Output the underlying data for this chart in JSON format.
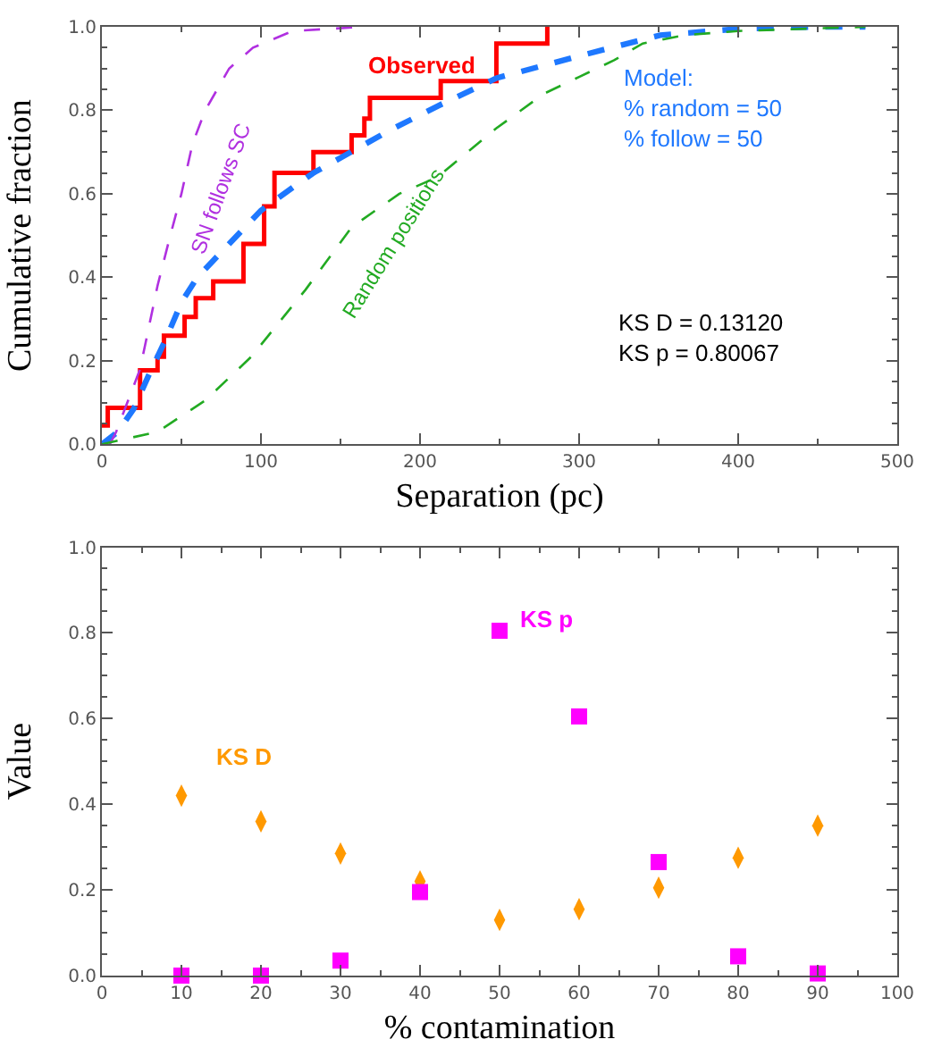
{
  "chart_data": [
    {
      "type": "line",
      "xlabel": "Separation (pc)",
      "ylabel": "Cumulative fraction",
      "xlim": [
        0,
        500
      ],
      "ylim": [
        0,
        1
      ],
      "xticks": [
        0,
        100,
        200,
        300,
        400,
        500
      ],
      "yticks": [
        {
          "value": 0,
          "label": "0.0"
        },
        {
          "value": 0.2,
          "label": "0.2"
        },
        {
          "value": 0.4,
          "label": "0.4"
        },
        {
          "value": 0.6,
          "label": "0.6"
        },
        {
          "value": 0.8,
          "label": "0.8"
        },
        {
          "value": 1,
          "label": "1.0"
        }
      ],
      "series": [
        {
          "name": "Observed",
          "type": "step",
          "color": "#ff0000",
          "line_style": "solid",
          "x": [
            0,
            3.7,
            24,
            35,
            39,
            52,
            59,
            70,
            89,
            102,
            108.5,
            133,
            157,
            165,
            168.5,
            213,
            248,
            280
          ],
          "values": [
            0.045,
            0.087,
            0.177,
            0.21,
            0.26,
            0.305,
            0.35,
            0.39,
            0.48,
            0.57,
            0.65,
            0.7,
            0.74,
            0.78,
            0.83,
            0.87,
            0.96,
            1.0
          ]
        },
        {
          "color": "#1e78ff",
          "line_style": "dashed",
          "x": [
            0,
            10,
            20,
            30,
            40,
            50,
            60,
            70,
            80,
            90,
            100,
            120,
            133,
            150,
            180,
            211,
            248,
            300,
            351,
            400,
            450,
            480
          ],
          "values": [
            0,
            0.03,
            0.085,
            0.17,
            0.25,
            0.34,
            0.4,
            0.44,
            0.48,
            0.52,
            0.56,
            0.615,
            0.65,
            0.686,
            0.75,
            0.81,
            0.877,
            0.93,
            0.98,
            0.995,
            1.0,
            1.0
          ]
        },
        {
          "name": "SN follows SC",
          "color": "#b030e0",
          "line_style": "dashed",
          "x": [
            5,
            9,
            24,
            35,
            43,
            50,
            57,
            65,
            80,
            95,
            120,
            165
          ],
          "values": [
            0,
            0.03,
            0.18,
            0.38,
            0.5,
            0.6,
            0.72,
            0.8,
            0.9,
            0.95,
            0.99,
            1.0
          ]
        },
        {
          "name": "Random positions",
          "color": "#22aa22",
          "line_style": "dashed",
          "x": [
            0,
            35,
            65,
            94,
            128,
            157,
            187,
            211,
            248,
            278,
            300,
            322,
            340,
            366,
            400,
            480
          ],
          "values": [
            0,
            0.03,
            0.105,
            0.21,
            0.37,
            0.52,
            0.6,
            0.64,
            0.757,
            0.84,
            0.88,
            0.92,
            0.96,
            0.98,
            0.99,
            1.0
          ]
        }
      ],
      "annotations": [
        "Model:\n% random = 50\n% follow = 50",
        "KS D = 0.13120\nKS p = 0.80067"
      ]
    },
    {
      "type": "scatter",
      "xlabel": "% contamination",
      "ylabel": "Value",
      "xlim": [
        0,
        100
      ],
      "ylim": [
        0,
        1
      ],
      "xticks": [
        0,
        10,
        20,
        30,
        40,
        50,
        60,
        70,
        80,
        90,
        100
      ],
      "yticks": [
        {
          "value": 0,
          "label": "0.0"
        },
        {
          "value": 0.2,
          "label": "0.2"
        },
        {
          "value": 0.4,
          "label": "0.4"
        },
        {
          "value": 0.6,
          "label": "0.6"
        },
        {
          "value": 0.8,
          "label": "0.8"
        },
        {
          "value": 1,
          "label": "1.0"
        }
      ],
      "x": [
        10,
        20,
        30,
        40,
        50,
        60,
        70,
        80,
        90
      ],
      "series": [
        {
          "name": "KS D",
          "color": "#ff9900",
          "marker": "diamond",
          "values": [
            0.42,
            0.36,
            0.285,
            0.22,
            0.13,
            0.155,
            0.205,
            0.275,
            0.35
          ]
        },
        {
          "name": "KS p",
          "color": "#ff00ff",
          "marker": "square",
          "values": [
            0.0,
            0.0,
            0.035,
            0.195,
            0.805,
            0.605,
            0.265,
            0.045,
            0.005
          ]
        }
      ]
    }
  ]
}
